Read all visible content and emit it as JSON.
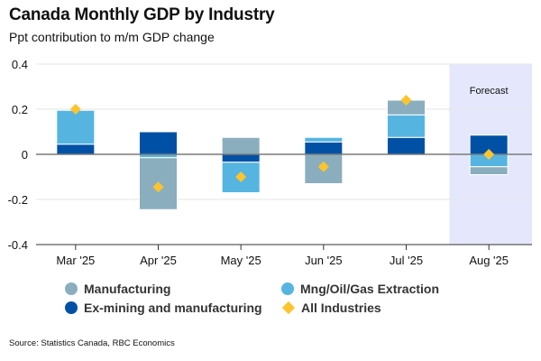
{
  "header": {
    "title": "Canada Monthly GDP by Industry",
    "subtitle": "Ppt contribution to m/m GDP change"
  },
  "colors": {
    "manufacturing": "#8aaebe",
    "ex_mining_manufacturing": "#0051a5",
    "mng_oil_gas": "#55b5e0",
    "all_industries": "#fec42d",
    "forecast_shade": "#e5e8fc",
    "gridline": "#e6e6e6",
    "zero_line": "#7a7a7a"
  },
  "legend": {
    "items": [
      {
        "key": "manufacturing",
        "label": "Manufacturing",
        "marker": "circle"
      },
      {
        "key": "mng_oil_gas",
        "label": "Mng/Oil/Gas Extraction",
        "marker": "circle"
      },
      {
        "key": "ex_mining_manufacturing",
        "label": "Ex-mining and manufacturing",
        "marker": "circle"
      },
      {
        "key": "all_industries",
        "label": "All Industries",
        "marker": "diamond"
      }
    ]
  },
  "source": "Source: Statistics Canada, RBC Economics",
  "chart_data": {
    "type": "bar",
    "stacked": true,
    "title": "Canada Monthly GDP by Industry",
    "subtitle": "Ppt contribution to m/m GDP change",
    "xlabel": "",
    "ylabel": "",
    "categories": [
      "Mar '25",
      "Apr '25",
      "May '25",
      "Jun '25",
      "Jul '25",
      "Aug '25"
    ],
    "ylim": [
      -0.4,
      0.4
    ],
    "yticks": [
      0.4,
      0.2,
      0,
      -0.2,
      -0.4
    ],
    "ytick_labels": [
      "0.4",
      "0.2",
      "0",
      "-0.2",
      "-0.4"
    ],
    "grid": true,
    "series": [
      {
        "name": "Ex-mining and manufacturing",
        "key": "ex_mining_manufacturing",
        "type": "bar",
        "values": [
          0.045,
          0.1,
          -0.035,
          0.055,
          0.075,
          0.085
        ]
      },
      {
        "name": "Mng/Oil/Gas Extraction",
        "key": "mng_oil_gas",
        "type": "bar",
        "values": [
          0.15,
          -0.015,
          -0.135,
          0.02,
          0.1,
          -0.055
        ]
      },
      {
        "name": "Manufacturing",
        "key": "manufacturing",
        "type": "bar",
        "values": [
          0.0,
          -0.23,
          0.075,
          -0.13,
          0.065,
          -0.035
        ]
      },
      {
        "name": "All Industries",
        "key": "all_industries",
        "type": "marker",
        "values": [
          0.2,
          -0.145,
          -0.1,
          -0.055,
          0.24,
          0.0
        ]
      }
    ],
    "annotations": [
      {
        "text": "Forecast",
        "category": "Aug '25",
        "shaded": true
      }
    ],
    "legend_position": "bottom"
  }
}
